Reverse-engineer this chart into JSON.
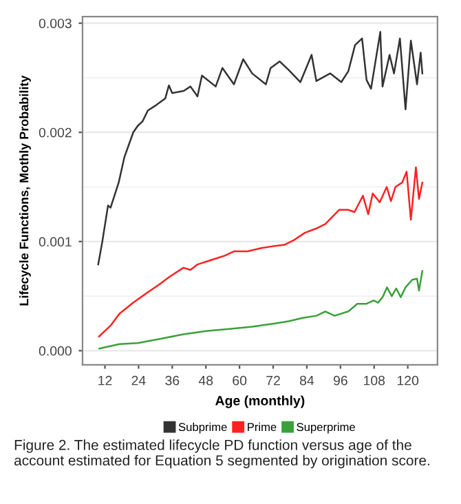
{
  "chart_data": {
    "type": "line",
    "xlabel": "Age (monthly)",
    "ylabel": "Lifecycle Functions, Mothly Probability",
    "xlim": [
      4.0,
      130.6
    ],
    "xticks": [
      12,
      24,
      36,
      48,
      60,
      72,
      84,
      96,
      108,
      120
    ],
    "ylim": [
      -0.00013,
      0.00306
    ],
    "yticks": [
      {
        "value": 0,
        "label": "0.000"
      },
      {
        "value": 0.001,
        "label": "0.001"
      },
      {
        "value": 0.002,
        "label": "0.002"
      },
      {
        "value": 0.003,
        "label": "0.003"
      }
    ],
    "grid": "y",
    "legend": "bottom",
    "line_style": "solid",
    "marker": "none",
    "series": [
      {
        "name": "Subprime",
        "color": "#333333",
        "x": [
          9.6,
          11,
          13.1,
          14,
          16.9,
          18.9,
          22.1,
          23.7,
          25.4,
          27.3,
          30.3,
          33.5,
          34.8,
          36,
          40.1,
          42.5,
          45,
          46.6,
          51.5,
          53.9,
          58,
          61.3,
          64.5,
          69.4,
          71.1,
          74.3,
          77.6,
          81.7,
          85.7,
          87.4,
          92.3,
          96.3,
          98.8,
          101.2,
          103.7,
          105.3,
          106.9,
          110.2,
          111,
          113.5,
          115.1,
          117.2,
          119.2,
          121.1,
          123.3,
          124.6,
          125.2
        ],
        "values": [
          0.00079,
          0.00099,
          0.00133,
          0.00131,
          0.00154,
          0.00177,
          0.002,
          0.00206,
          0.0021,
          0.0022,
          0.00225,
          0.00231,
          0.00243,
          0.00236,
          0.00238,
          0.00242,
          0.00233,
          0.00252,
          0.00242,
          0.00259,
          0.00244,
          0.00267,
          0.00254,
          0.00244,
          0.00259,
          0.00265,
          0.00257,
          0.00246,
          0.00271,
          0.00247,
          0.00254,
          0.00246,
          0.00256,
          0.0028,
          0.00286,
          0.00248,
          0.0024,
          0.00292,
          0.00242,
          0.00271,
          0.00254,
          0.00286,
          0.00221,
          0.00284,
          0.00244,
          0.00273,
          0.00254
        ]
      },
      {
        "name": "Prime",
        "color": "#ff2020",
        "x": [
          9.9,
          14,
          17.2,
          22.1,
          27,
          31,
          35.2,
          40,
          42.5,
          45,
          49.8,
          54.7,
          58,
          62.9,
          67.8,
          72.7,
          76,
          79.2,
          83.3,
          87.4,
          90.6,
          95.5,
          98.8,
          101,
          104,
          105.9,
          107.5,
          110,
          112.5,
          114,
          115.6,
          118,
          119.6,
          121.1,
          122.9,
          124,
          125.2
        ],
        "values": [
          0.00013,
          0.00023,
          0.00034,
          0.00044,
          0.00053,
          0.0006,
          0.00068,
          0.00076,
          0.00074,
          0.00079,
          0.00083,
          0.00087,
          0.00091,
          0.00091,
          0.00094,
          0.00096,
          0.00097,
          0.00101,
          0.00108,
          0.00112,
          0.00116,
          0.00129,
          0.00129,
          0.00127,
          0.00142,
          0.00125,
          0.00144,
          0.00136,
          0.0015,
          0.00137,
          0.0015,
          0.00154,
          0.00164,
          0.0012,
          0.00168,
          0.00139,
          0.00154
        ]
      },
      {
        "name": "Superprime",
        "color": "#3aa03a",
        "x": [
          10,
          17.2,
          23.7,
          31.9,
          40,
          48.2,
          56.4,
          64.5,
          72.7,
          77.6,
          82.5,
          87.4,
          90.6,
          93.9,
          98.8,
          102,
          105.3,
          107.8,
          109.4,
          111,
          112.6,
          114.3,
          115.9,
          117.5,
          119.2,
          121.6,
          123.3,
          124,
          125.2
        ],
        "values": [
          2e-05,
          6e-05,
          7e-05,
          0.00011,
          0.00015,
          0.00018,
          0.0002,
          0.00022,
          0.00025,
          0.00027,
          0.0003,
          0.00032,
          0.00036,
          0.00032,
          0.00036,
          0.00043,
          0.00043,
          0.00046,
          0.00044,
          0.00049,
          0.00058,
          0.0005,
          0.00057,
          0.00049,
          0.00058,
          0.00065,
          0.00066,
          0.00055,
          0.00073
        ]
      }
    ],
    "annotations": [
      "Figure 2. The estimated lifecycle PD function versus age of the account estimated for Equation 5 segmented by origination score."
    ]
  }
}
